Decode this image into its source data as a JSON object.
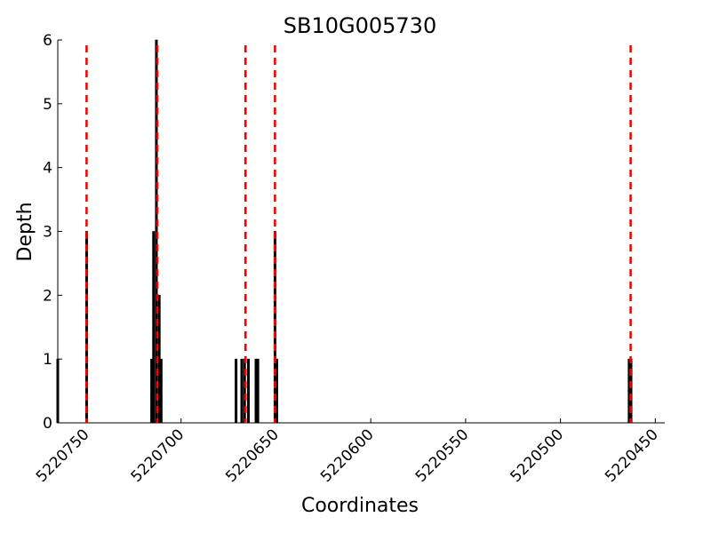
{
  "chart_data": {
    "type": "bar",
    "title": "SB10G005730",
    "xlabel": "Coordinates",
    "ylabel": "Depth",
    "xlim": [
      5220765,
      5220445
    ],
    "x_reversed": true,
    "ylim": [
      0,
      6
    ],
    "x_ticks": [
      5220750,
      5220700,
      5220650,
      5220600,
      5220550,
      5220500,
      5220450
    ],
    "y_ticks": [
      0,
      1,
      2,
      3,
      4,
      5,
      6
    ],
    "grid": false,
    "bar_color": "#000000",
    "bars": [
      {
        "x": 5220765,
        "value": 1
      },
      {
        "x": 5220749.8,
        "value": 3
      },
      {
        "x": 5220715.5,
        "value": 1
      },
      {
        "x": 5220714.5,
        "value": 3
      },
      {
        "x": 5220713,
        "value": 6
      },
      {
        "x": 5220711.5,
        "value": 2
      },
      {
        "x": 5220710.5,
        "value": 1
      },
      {
        "x": 5220671,
        "value": 1
      },
      {
        "x": 5220668,
        "value": 1
      },
      {
        "x": 5220666.5,
        "value": 1
      },
      {
        "x": 5220664.5,
        "value": 1
      },
      {
        "x": 5220660.5,
        "value": 1
      },
      {
        "x": 5220659.5,
        "value": 1
      },
      {
        "x": 5220650.5,
        "value": 3
      },
      {
        "x": 5220649.5,
        "value": 1
      },
      {
        "x": 5220463.8,
        "value": 1
      },
      {
        "x": 5220462.8,
        "value": 1
      }
    ],
    "markers": {
      "style": "dashed",
      "color": "#ff0000",
      "positions": [
        5220749.8,
        5220712.5,
        5220666.0,
        5220650.5,
        5220463.0
      ]
    }
  }
}
